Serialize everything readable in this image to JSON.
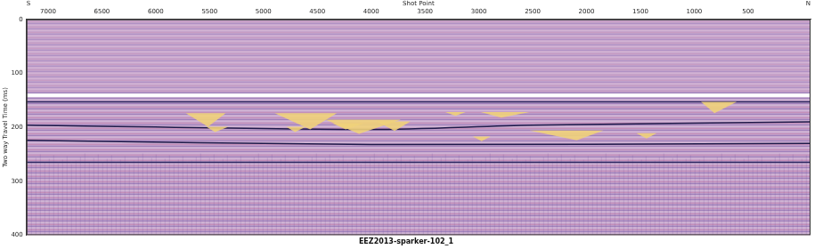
{
  "chart_data": {
    "type": "seismic_section",
    "title": "EEZ2013-sparker-102_1",
    "x_label": "Shot Point",
    "y_label": "Two way Travel Time (ms)",
    "annotations": [
      {
        "text": "S",
        "position": "left"
      },
      {
        "text": "N",
        "position": "right"
      }
    ],
    "xlim": [
      7200,
      -80
    ],
    "xticks": [
      7000,
      6500,
      6000,
      5500,
      5000,
      4500,
      4000,
      3500,
      3000,
      2500,
      2000,
      1500,
      1000,
      500
    ],
    "ylim": [
      400,
      0
    ],
    "yticks": [
      0,
      100,
      200,
      300,
      400
    ],
    "grid": false,
    "series": [
      {
        "color": "#ffffff",
        "x": [
          7200,
          3500,
          -80
        ],
        "values": [
          141,
          141,
          141
        ]
      },
      {
        "color": "#2b2760",
        "x": [
          7200,
          3500,
          -80
        ],
        "values": [
          153,
          153,
          153
        ]
      },
      {
        "color": "#1e1a4a",
        "x": [
          7200,
          4000,
          2500,
          -80
        ],
        "values": [
          196,
          204,
          196,
          190
        ]
      },
      {
        "color": "#1e1a4a",
        "x": [
          7200,
          4000,
          -80
        ],
        "values": [
          224,
          232,
          230
        ]
      },
      {
        "color": "#2b2760",
        "x": [
          7200,
          3500,
          -80
        ],
        "values": [
          265,
          265,
          265
        ]
      }
    ],
    "regions": [
      {
        "color": "#efd27a",
        "x": [
          5721,
          5350,
          5515
        ],
        "y": [
          174,
          174,
          199
        ]
      },
      {
        "color": "#efd27a",
        "x": [
          4896,
          4318,
          4566
        ],
        "y": [
          174,
          174,
          204
        ]
      },
      {
        "color": "#efd27a",
        "x": [
          4359,
          4071,
          4236
        ],
        "y": [
          193,
          193,
          204
        ]
      },
      {
        "color": "#efd27a",
        "x": [
          3947,
          3634,
          3782
        ],
        "y": [
          189,
          189,
          207
        ]
      },
      {
        "color": "#efd27a",
        "x": [
          3312,
          3122,
          3217
        ],
        "y": [
          172,
          172,
          179
        ]
      },
      {
        "color": "#efd27a",
        "x": [
          2982,
          2528,
          2792
        ],
        "y": [
          172,
          172,
          182
        ]
      },
      {
        "color": "#efd27a",
        "x": [
          3056,
          2891,
          2974
        ],
        "y": [
          217,
          217,
          226
        ]
      },
      {
        "color": "#efd27a",
        "x": [
          4426,
          3724,
          4112
        ],
        "y": [
          186,
          186,
          212
        ]
      },
      {
        "color": "#efd27a",
        "x": [
          5531,
          5325,
          5449
        ],
        "y": [
          199,
          199,
          209
        ]
      },
      {
        "color": "#efd27a",
        "x": [
          4789,
          4607,
          4706
        ],
        "y": [
          199,
          199,
          209
        ]
      },
      {
        "color": "#efd27a",
        "x": [
          2528,
          1843,
          2091
        ],
        "y": [
          206,
          206,
          224
        ]
      },
      {
        "color": "#efd27a",
        "x": [
          1538,
          1348,
          1443
        ],
        "y": [
          211,
          211,
          221
        ]
      },
      {
        "color": "#efd27a",
        "x": [
          936,
          606,
          812
        ],
        "y": [
          153,
          153,
          174
        ]
      }
    ]
  }
}
